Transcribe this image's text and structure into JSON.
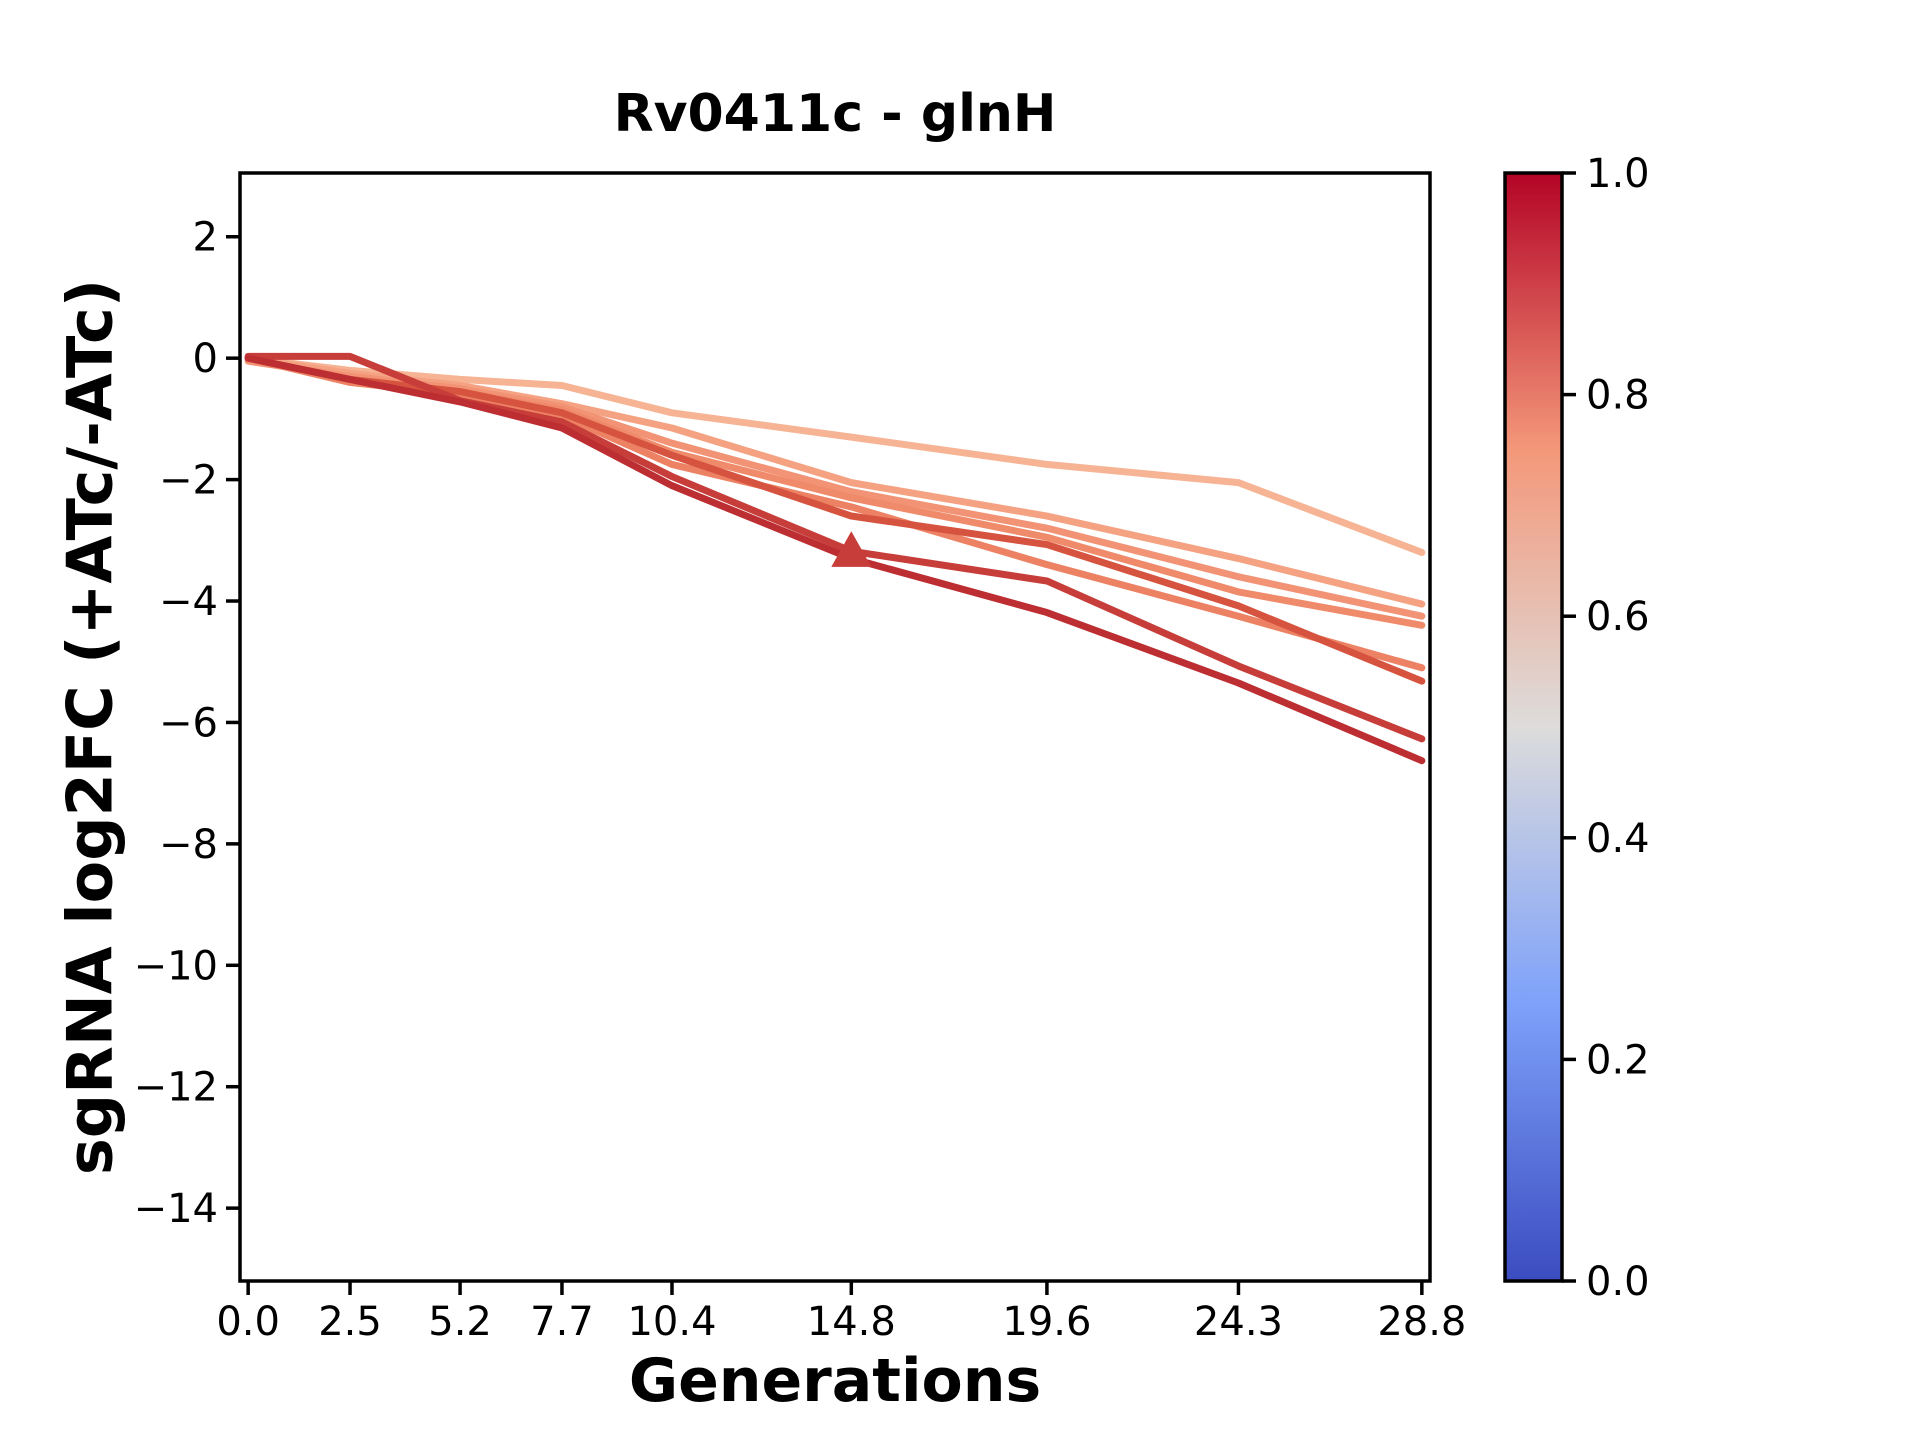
{
  "figure": {
    "background": "#ffffff"
  },
  "chart_data": {
    "type": "line",
    "title": "Rv0411c - glnH",
    "xlabel": "Generations",
    "ylabel": "sgRNA log2FC (+ATc/-ATc)",
    "x": [
      0.0,
      2.5,
      5.2,
      7.7,
      10.4,
      14.8,
      19.6,
      24.3,
      28.8
    ],
    "xtick_labels": [
      "0.0",
      "2.5",
      "5.2",
      "7.7",
      "10.4",
      "14.8",
      "19.6",
      "24.3",
      "28.8"
    ],
    "ytick_values": [
      2,
      0,
      -2,
      -4,
      -6,
      -8,
      -10,
      -12,
      -14
    ],
    "ytick_labels": [
      "2",
      "0",
      "−2",
      "−4",
      "−6",
      "−8",
      "−10",
      "−12",
      "−14"
    ],
    "xlim": [
      -0.2,
      29.0
    ],
    "ylim": [
      -15.2,
      3.05
    ],
    "grid": false,
    "legend_position": "none",
    "axis_color": "#000000",
    "line_width": 7,
    "series": [
      {
        "name": "line-1",
        "color": "#f6b494",
        "values": [
          0.0,
          -0.2,
          -0.35,
          -0.45,
          -0.9,
          -1.3,
          -1.75,
          -2.05,
          -3.2
        ]
      },
      {
        "name": "line-2",
        "color": "#f5a283",
        "values": [
          0.0,
          -0.25,
          -0.45,
          -0.75,
          -1.15,
          -2.05,
          -2.6,
          -3.3,
          -4.05
        ]
      },
      {
        "name": "line-3",
        "color": "#f19374",
        "values": [
          -0.05,
          -0.3,
          -0.5,
          -0.8,
          -1.4,
          -2.2,
          -2.8,
          -3.6,
          -4.25
        ]
      },
      {
        "name": "line-4",
        "color": "#ef8a6a",
        "values": [
          0.0,
          -0.35,
          -0.55,
          -0.85,
          -1.55,
          -2.3,
          -2.95,
          -3.85,
          -4.4
        ]
      },
      {
        "name": "line-5",
        "color": "#ec8163",
        "values": [
          0.0,
          -0.4,
          -0.6,
          -0.95,
          -1.75,
          -2.45,
          -3.4,
          -4.25,
          -5.1
        ]
      },
      {
        "name": "line-6",
        "color": "#d6533f",
        "values": [
          0.0,
          -0.35,
          -0.55,
          -0.9,
          -1.6,
          -2.6,
          -3.07,
          -4.08,
          -5.32
        ]
      },
      {
        "name": "line-7",
        "color": "#c73d39",
        "values": [
          0.03,
          0.03,
          -0.7,
          -1.05,
          -1.95,
          -3.18,
          -3.67,
          -5.07,
          -6.27
        ]
      },
      {
        "name": "line-8",
        "color": "#bc2e32",
        "values": [
          0.0,
          -0.35,
          -0.72,
          -1.15,
          -2.1,
          -3.3,
          -4.19,
          -5.35,
          -6.63
        ]
      }
    ],
    "marker": {
      "series_index": 6,
      "point_index": 5,
      "shape": "triangle-up",
      "size": 40
    },
    "colorbar": {
      "colormap": "coolwarm",
      "range": [
        0.0,
        1.0
      ],
      "tick_values": [
        0.0,
        0.2,
        0.4,
        0.6,
        0.8,
        1.0
      ],
      "tick_labels": [
        "0.0",
        "0.2",
        "0.4",
        "0.6",
        "0.8",
        "1.0"
      ],
      "gradient_stops": [
        {
          "pos": 0.0,
          "color": "#3b4cc0"
        },
        {
          "pos": 0.25,
          "color": "#7ea1fa"
        },
        {
          "pos": 0.5,
          "color": "#dddcdb"
        },
        {
          "pos": 0.75,
          "color": "#f4987a"
        },
        {
          "pos": 1.0,
          "color": "#b40426"
        }
      ]
    }
  }
}
